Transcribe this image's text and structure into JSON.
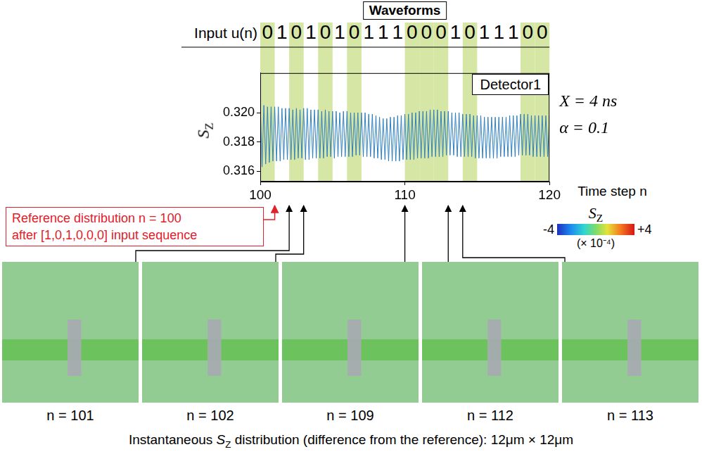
{
  "chart_data": {
    "type": "line",
    "title": "Waveforms",
    "xlabel": "Time step n",
    "ylabel": {
      "before": "",
      "symbol": "S",
      "sub": "Z",
      "after": ""
    },
    "x": [
      100,
      100.125,
      100.25,
      100.375,
      100.5,
      100.625,
      100.75,
      100.875,
      101,
      101.125,
      101.25,
      101.375,
      101.5,
      101.625,
      101.75,
      101.875,
      102,
      102.125,
      102.25,
      102.375,
      102.5,
      102.625,
      102.75,
      102.875,
      103,
      103.125,
      103.25,
      103.375,
      103.5,
      103.625,
      103.75,
      103.875,
      104,
      104.125,
      104.25,
      104.375,
      104.5,
      104.625,
      104.75,
      104.875,
      105,
      105.125,
      105.25,
      105.375,
      105.5,
      105.625,
      105.75,
      105.875,
      106,
      106.125,
      106.25,
      106.375,
      106.5,
      106.625,
      106.75,
      106.875,
      107,
      107.125,
      107.25,
      107.375,
      107.5,
      107.625,
      107.75,
      107.875,
      108,
      108.125,
      108.25,
      108.375,
      108.5,
      108.625,
      108.75,
      108.875,
      109,
      109.125,
      109.25,
      109.375,
      109.5,
      109.625,
      109.75,
      109.875,
      110,
      110.125,
      110.25,
      110.375,
      110.5,
      110.625,
      110.75,
      110.875,
      111,
      111.125,
      111.25,
      111.375,
      111.5,
      111.625,
      111.75,
      111.875,
      112,
      112.125,
      112.25,
      112.375,
      112.5,
      112.625,
      112.75,
      112.875,
      113,
      113.125,
      113.25,
      113.375,
      113.5,
      113.625,
      113.75,
      113.875,
      114,
      114.125,
      114.25,
      114.375,
      114.5,
      114.625,
      114.75,
      114.875,
      115,
      115.125,
      115.25,
      115.375,
      115.5,
      115.625,
      115.75,
      115.875,
      116,
      116.125,
      116.25,
      116.375,
      116.5,
      116.625,
      116.75,
      116.875,
      117,
      117.125,
      117.25,
      117.375,
      117.5,
      117.625,
      117.75,
      117.875,
      118,
      118.125,
      118.25,
      118.375,
      118.5,
      118.625,
      118.75,
      118.875,
      119,
      119.125,
      119.25,
      119.375,
      119.5,
      119.625,
      119.75,
      119.875,
      120
    ],
    "series": [
      {
        "name": "Detector1",
        "color": "#2f7fc0",
        "values": [
          0.3206,
          0.3163,
          0.3205,
          0.3165,
          0.3204,
          0.3166,
          0.3204,
          0.3167,
          0.3204,
          0.3167,
          0.3204,
          0.3167,
          0.3203,
          0.3168,
          0.3203,
          0.3168,
          0.3203,
          0.3168,
          0.3202,
          0.3168,
          0.3203,
          0.3169,
          0.3202,
          0.3169,
          0.3203,
          0.3168,
          0.3203,
          0.3168,
          0.3202,
          0.3169,
          0.3202,
          0.3169,
          0.3202,
          0.3169,
          0.3201,
          0.3169,
          0.3202,
          0.317,
          0.3201,
          0.317,
          0.3201,
          0.3169,
          0.3201,
          0.317,
          0.32,
          0.317,
          0.3201,
          0.317,
          0.3201,
          0.317,
          0.32,
          0.317,
          0.32,
          0.3171,
          0.32,
          0.3171,
          0.32,
          0.317,
          0.32,
          0.317,
          0.3199,
          0.317,
          0.3199,
          0.3169,
          0.3198,
          0.3169,
          0.3197,
          0.3168,
          0.3196,
          0.3168,
          0.3196,
          0.3167,
          0.3197,
          0.3167,
          0.3197,
          0.3167,
          0.3198,
          0.3167,
          0.3198,
          0.3168,
          0.3199,
          0.3168,
          0.3199,
          0.3168,
          0.32,
          0.3168,
          0.32,
          0.3169,
          0.3201,
          0.3169,
          0.3201,
          0.3169,
          0.3201,
          0.3169,
          0.3202,
          0.317,
          0.3202,
          0.317,
          0.3202,
          0.317,
          0.3201,
          0.317,
          0.3201,
          0.3171,
          0.3201,
          0.3171,
          0.32,
          0.3171,
          0.32,
          0.317,
          0.32,
          0.317,
          0.3199,
          0.317,
          0.3199,
          0.317,
          0.3199,
          0.317,
          0.3198,
          0.3169,
          0.3198,
          0.3169,
          0.3198,
          0.3169,
          0.3197,
          0.3169,
          0.3197,
          0.3169,
          0.3197,
          0.3169,
          0.3197,
          0.3169,
          0.3197,
          0.317,
          0.3197,
          0.317,
          0.3197,
          0.317,
          0.3198,
          0.317,
          0.3198,
          0.317,
          0.3198,
          0.3171,
          0.3199,
          0.3171,
          0.3199,
          0.3171,
          0.3199,
          0.3171,
          0.3198,
          0.317,
          0.3198,
          0.317,
          0.3198,
          0.317,
          0.3198,
          0.317,
          0.3198,
          0.317,
          0.3198
        ]
      }
    ],
    "xlim": [
      100,
      120
    ],
    "xticks": [
      100,
      110,
      120
    ],
    "ylim": [
      0.3153,
      0.3227
    ],
    "yticks": [
      0.316,
      0.318,
      {
        "value": 0.32,
        "label": "0.320"
      }
    ],
    "grid": false,
    "legend": "upper right"
  },
  "input": {
    "label": "Input u(n)",
    "sequence": "01010101110001011100"
  },
  "parameters": [
    "X = 4 ns",
    "α = 0.1"
  ],
  "reference": {
    "lines": [
      "Reference distribution n = 100",
      "after [1,0,1,0,0,0] input sequence"
    ],
    "n": 100
  },
  "colorbar": {
    "label": {
      "before": "",
      "symbol": "S",
      "sub": "Z",
      "after": ""
    },
    "range": [
      -4,
      4
    ],
    "ticks": [
      -4,
      {
        "value": 4,
        "label": "+4"
      }
    ],
    "scale_label": "(× 10⁻⁴)"
  },
  "panels": [
    {
      "label": "n = 101",
      "n": 101
    },
    {
      "label": "n = 102",
      "n": 102
    },
    {
      "label": "n = 109",
      "n": 109
    },
    {
      "label": "n = 112",
      "n": 112
    },
    {
      "label": "n = 113",
      "n": 113
    }
  ],
  "caption": {
    "before": "Instantaneous ",
    "symbol": "S",
    "sub": "Z",
    "after": " distribution (difference from the reference): 12μm × 12μm"
  }
}
